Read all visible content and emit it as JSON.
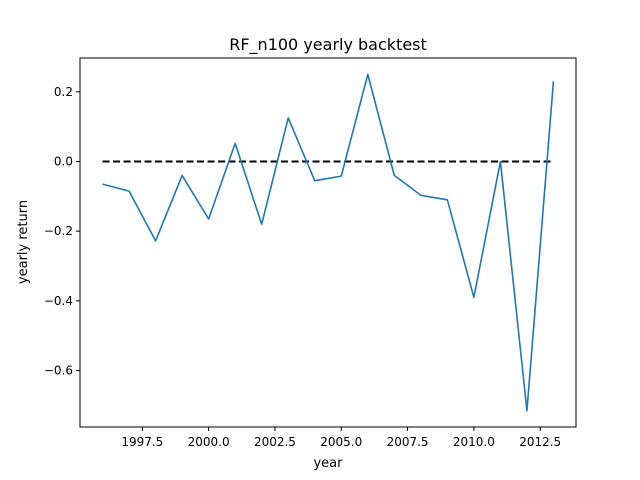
{
  "chart_data": {
    "type": "line",
    "title": "RF_n100 yearly backtest",
    "xlabel": "year",
    "ylabel": "yearly return",
    "xlim": [
      1995.15,
      2013.85
    ],
    "ylim": [
      -0.762,
      0.297
    ],
    "x_ticks": [
      1997.5,
      2000.0,
      2002.5,
      2005.0,
      2007.5,
      2010.0,
      2012.5
    ],
    "x_tick_labels": [
      "1997.5",
      "2000.0",
      "2002.5",
      "2005.0",
      "2007.5",
      "2010.0",
      "2012.5"
    ],
    "y_ticks": [
      0.2,
      0.0,
      -0.2,
      -0.4,
      -0.6
    ],
    "y_tick_labels": [
      "0.2",
      "0.0",
      "−0.2",
      "−0.4",
      "−0.6"
    ],
    "grid": false,
    "series": [
      {
        "color": "#1f77b4",
        "style": "solid",
        "x": [
          1996,
          1997,
          1998,
          1999,
          2000,
          2001,
          2002,
          2003,
          2004,
          2005,
          2006,
          2007,
          2008,
          2009,
          2010,
          2011,
          2012,
          2013
        ],
        "y": [
          -0.065,
          -0.085,
          -0.228,
          -0.04,
          -0.165,
          0.052,
          -0.18,
          0.125,
          -0.055,
          -0.042,
          0.25,
          -0.04,
          -0.097,
          -0.11,
          -0.39,
          0.0,
          -0.715,
          0.23
        ]
      },
      {
        "color": "#000000",
        "style": "dashed",
        "x": [
          1996,
          2013
        ],
        "y": [
          0.0,
          0.0
        ]
      }
    ]
  }
}
